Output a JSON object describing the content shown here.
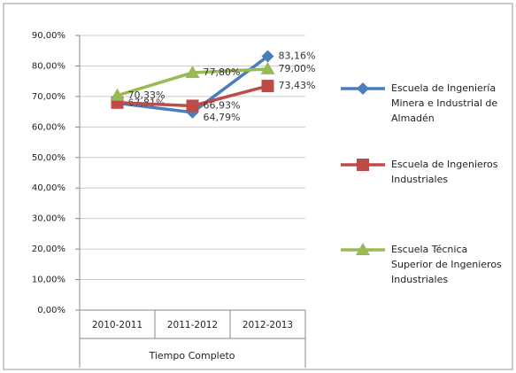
{
  "chart_data": {
    "type": "line",
    "x_label": "Tiempo Completo",
    "categories": [
      "2010-2011",
      "2011-2012",
      "2012-2013"
    ],
    "ylim": [
      0,
      90
    ],
    "yticks": [
      {
        "value": 0,
        "label": "0,00%"
      },
      {
        "value": 10,
        "label": "10,00%"
      },
      {
        "value": 20,
        "label": "20,00%"
      },
      {
        "value": 30,
        "label": "30,00%"
      },
      {
        "value": 40,
        "label": "40,00%"
      },
      {
        "value": 50,
        "label": "50,00%"
      },
      {
        "value": 60,
        "label": "60,00%"
      },
      {
        "value": 70,
        "label": "70,00%"
      },
      {
        "value": 80,
        "label": "80,00%"
      },
      {
        "value": 90,
        "label": "90,00%"
      }
    ],
    "grid": true,
    "legend": "right",
    "series": [
      {
        "name": "Escuela de Ingeniería Minera e Industrial de Almadén",
        "color": "#4a7ebb",
        "marker": "diamond",
        "values": [
          67.81,
          64.79,
          83.16
        ],
        "value_labels": [
          "67,81%",
          "64,79%",
          "83,16%"
        ]
      },
      {
        "name": "Escuela de Ingenieros Industriales",
        "color": "#be4b48",
        "marker": "square",
        "values": [
          68,
          66.93,
          73.43
        ],
        "value_labels": [
          null,
          "66,93%",
          "73,43%"
        ]
      },
      {
        "name": "Escuela Técnica Superior de Ingenieros Industriales",
        "color": "#98b954",
        "marker": "triangle",
        "values": [
          70.33,
          77.8,
          79
        ],
        "value_labels": [
          "70,33%",
          "77,80%",
          "79,00%"
        ]
      }
    ]
  }
}
